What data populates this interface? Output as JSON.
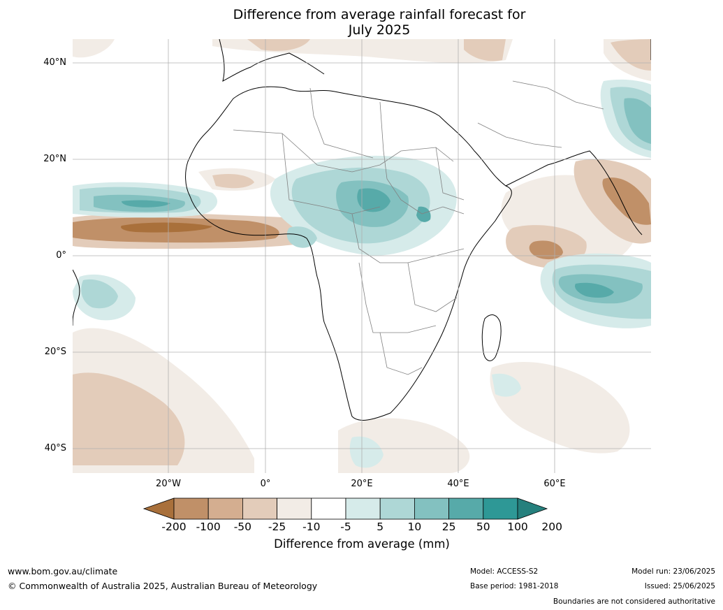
{
  "title_line1": "Difference from average rainfall forecast for",
  "title_line2": "July 2025",
  "lat_labels": [
    "40°N",
    "20°N",
    "0°",
    "20°S",
    "40°S"
  ],
  "lon_labels": [
    "20°W",
    "0°",
    "20°E",
    "40°E",
    "60°E"
  ],
  "colorbar": {
    "ticks": [
      "-200",
      "-100",
      "-50",
      "-25",
      "-10",
      "-5",
      "5",
      "10",
      "25",
      "50",
      "100",
      "200"
    ],
    "colors": [
      "#a9703b",
      "#c09068",
      "#d4ae90",
      "#e3ccba",
      "#f2ece6",
      "#ffffff",
      "#d6ebea",
      "#aed7d6",
      "#83c1c0",
      "#57aaa9",
      "#2e9896",
      "#25807d"
    ],
    "label": "Difference from average (mm)"
  },
  "footer": {
    "url": "www.bom.gov.au/climate",
    "copyright": "© Commonwealth of Australia 2025, Australian Bureau of Meteorology",
    "model": "Model: ACCESS-S2",
    "base_period": "Base period: 1981-2018",
    "model_run": "Model run: 23/06/2025",
    "issued": "Issued: 25/06/2025",
    "disclaimer": "Boundaries are not considered authoritative"
  }
}
